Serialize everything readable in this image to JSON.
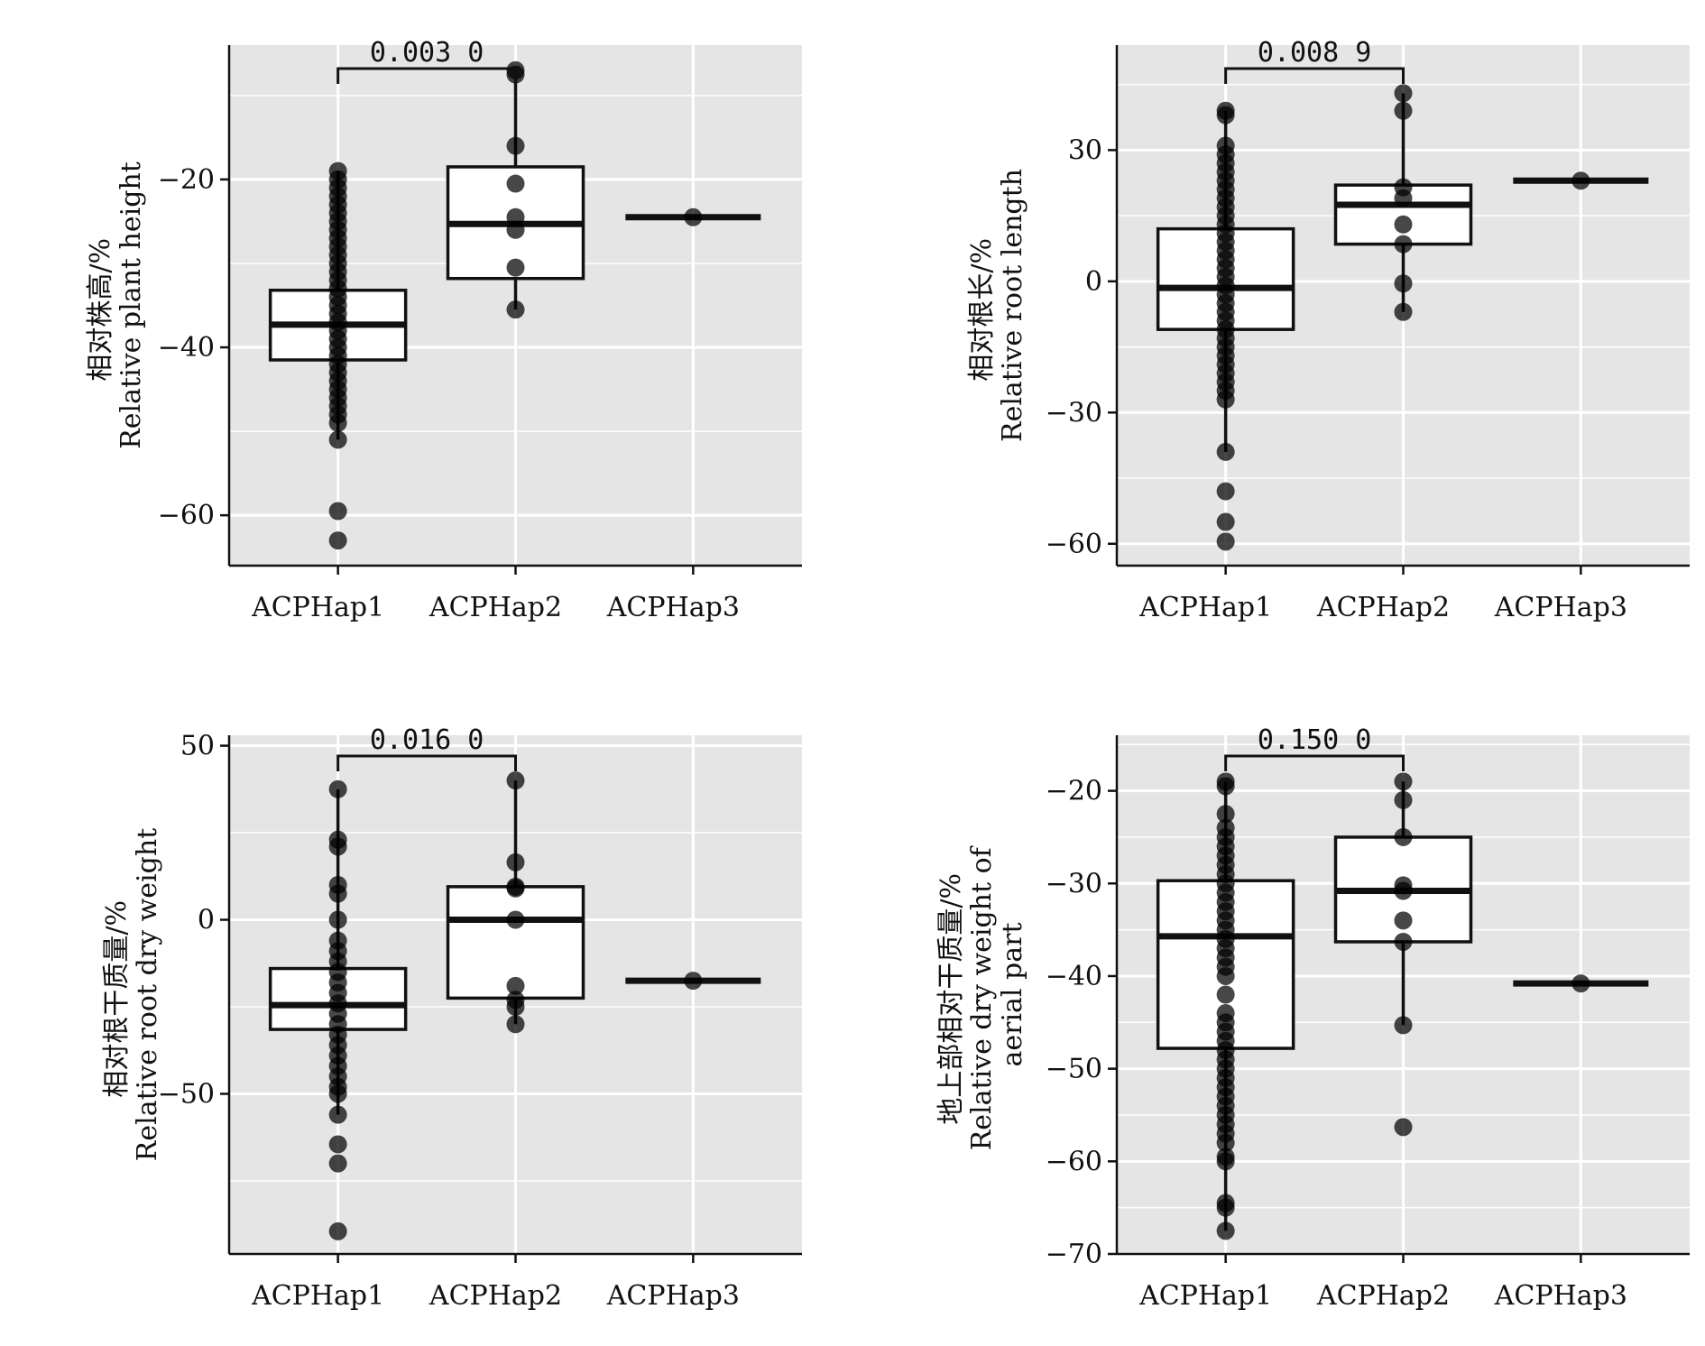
{
  "colors": {
    "panel_bg": "#e5e5e5",
    "grid": "#ffffff",
    "box_fill": "#ffffff",
    "box_stroke": "#111111",
    "point": "#000000",
    "axis": "#111111"
  },
  "chart_data": [
    {
      "type": "box",
      "ylabel_lines": [
        "相对株高/%",
        "Relative plant height"
      ],
      "categories": [
        "ACPHap1",
        "ACPHap2",
        "ACPHap3"
      ],
      "ylim": [
        -66,
        -4
      ],
      "yticks": [
        -20,
        -40,
        -60
      ],
      "grid": true,
      "boxes": [
        {
          "q1": -41.5,
          "median": -37.3,
          "q3": -33.2,
          "whisker_low": -51,
          "whisker_high": -19
        },
        {
          "q1": -31.8,
          "median": -25.3,
          "q3": -18.5,
          "whisker_low": -35.5,
          "whisker_high": -7
        },
        {
          "q1": -24.5,
          "median": -24.5,
          "q3": -24.5,
          "whisker_low": -24.5,
          "whisker_high": -24.5
        }
      ],
      "points": [
        [
          -19,
          -20,
          -21,
          -22,
          -23,
          -24,
          -25,
          -26,
          -27,
          -28,
          -29,
          -30,
          -31,
          -32,
          -33,
          -34,
          -35,
          -36,
          -37,
          -38,
          -39,
          -40,
          -41,
          -42,
          -43,
          -44,
          -45,
          -46,
          -47,
          -48,
          -49,
          -51,
          -59.5,
          -63
        ],
        [
          -7,
          -7.5,
          -16,
          -20.5,
          -24.5,
          -26,
          -30.5,
          -35.5
        ],
        [
          -24.5
        ]
      ],
      "comparison": {
        "from": 0,
        "to": 1,
        "label": "0.003 0"
      }
    },
    {
      "type": "box",
      "ylabel_lines": [
        "相对根长/%",
        "Relative root length"
      ],
      "categories": [
        "ACPHap1",
        "ACPHap2",
        "ACPHap3"
      ],
      "ylim": [
        -65,
        54
      ],
      "yticks": [
        30,
        0,
        -30,
        -60
      ],
      "grid": true,
      "boxes": [
        {
          "q1": -11,
          "median": -1.5,
          "q3": 12,
          "whisker_low": -39,
          "whisker_high": 39
        },
        {
          "q1": 8.5,
          "median": 17.5,
          "q3": 22,
          "whisker_low": -7,
          "whisker_high": 43
        },
        {
          "q1": 23,
          "median": 23,
          "q3": 23,
          "whisker_low": 23,
          "whisker_high": 23
        }
      ],
      "points": [
        [
          39,
          38,
          31,
          29,
          27,
          25,
          23,
          21,
          19,
          17,
          15,
          13,
          11,
          9,
          7,
          5,
          3,
          1,
          -1,
          -3,
          -5,
          -7,
          -9,
          -11,
          -13,
          -15,
          -17,
          -19,
          -21,
          -23,
          -25,
          -27,
          -39,
          -48,
          -55,
          -59.5
        ],
        [
          43,
          39,
          21.5,
          19,
          13,
          8.5,
          -0.5,
          -7
        ],
        [
          23
        ]
      ],
      "comparison": {
        "from": 0,
        "to": 1,
        "label": "0.008 9"
      }
    },
    {
      "type": "box",
      "ylabel_lines": [
        "相对根干质量/%",
        "Relative root dry weight"
      ],
      "categories": [
        "ACPHap1",
        "ACPHap2",
        "ACPHap3"
      ],
      "ylim": [
        -96,
        53
      ],
      "yticks": [
        50,
        0,
        -50
      ],
      "grid": true,
      "boxes": [
        {
          "q1": -31.5,
          "median": -24.5,
          "q3": -14,
          "whisker_low": -56,
          "whisker_high": 37.5
        },
        {
          "q1": -22.5,
          "median": 0,
          "q3": 9.5,
          "whisker_low": -30,
          "whisker_high": 40
        },
        {
          "q1": -17.5,
          "median": -17.5,
          "q3": -17.5,
          "whisker_low": -17.5,
          "whisker_high": -17.5
        }
      ],
      "points": [
        [
          37.5,
          23,
          21,
          10,
          7.5,
          0,
          -6,
          -9,
          -12,
          -15,
          -18,
          -21,
          -24,
          -27,
          -30,
          -33,
          -36,
          -39,
          -42,
          -45,
          -48,
          -50,
          -56,
          -64.5,
          -70,
          -89.5
        ],
        [
          40,
          16.5,
          9.5,
          9,
          0,
          -19,
          -23,
          -25,
          -30
        ],
        [
          -17.5
        ]
      ],
      "comparison": {
        "from": 0,
        "to": 1,
        "label": "0.016 0"
      }
    },
    {
      "type": "box",
      "ylabel_lines": [
        "地上部相对干质量/%",
        "Relative dry weight of",
        "aerial part"
      ],
      "categories": [
        "ACPHap1",
        "ACPHap2",
        "ACPHap3"
      ],
      "ylim": [
        -70,
        -14
      ],
      "yticks": [
        -20,
        -30,
        -40,
        -50,
        -60,
        -70
      ],
      "grid": true,
      "boxes": [
        {
          "q1": -47.8,
          "median": -35.7,
          "q3": -29.7,
          "whisker_low": -67.5,
          "whisker_high": -19
        },
        {
          "q1": -36.3,
          "median": -30.8,
          "q3": -25,
          "whisker_low": -45.3,
          "whisker_high": -19
        },
        {
          "q1": -40.8,
          "median": -40.8,
          "q3": -40.8,
          "whisker_low": -40.8,
          "whisker_high": -40.8
        }
      ],
      "points": [
        [
          -19,
          -19.5,
          -22.5,
          -24,
          -25,
          -26,
          -27,
          -28,
          -29,
          -30,
          -31,
          -32,
          -33,
          -34,
          -35,
          -36,
          -37,
          -38,
          -39,
          -40,
          -42,
          -44,
          -45,
          -46,
          -47,
          -48,
          -49,
          -50,
          -51,
          -52,
          -53,
          -54,
          -55,
          -56,
          -57,
          -58,
          -59.5,
          -60,
          -64.5,
          -65,
          -67.5
        ],
        [
          -19,
          -21,
          -25,
          -30.2,
          -30.8,
          -34,
          -36.3,
          -45.3,
          -56.3
        ],
        [
          -40.8
        ]
      ],
      "comparison": {
        "from": 0,
        "to": 1,
        "label": "0.150 0"
      }
    }
  ]
}
